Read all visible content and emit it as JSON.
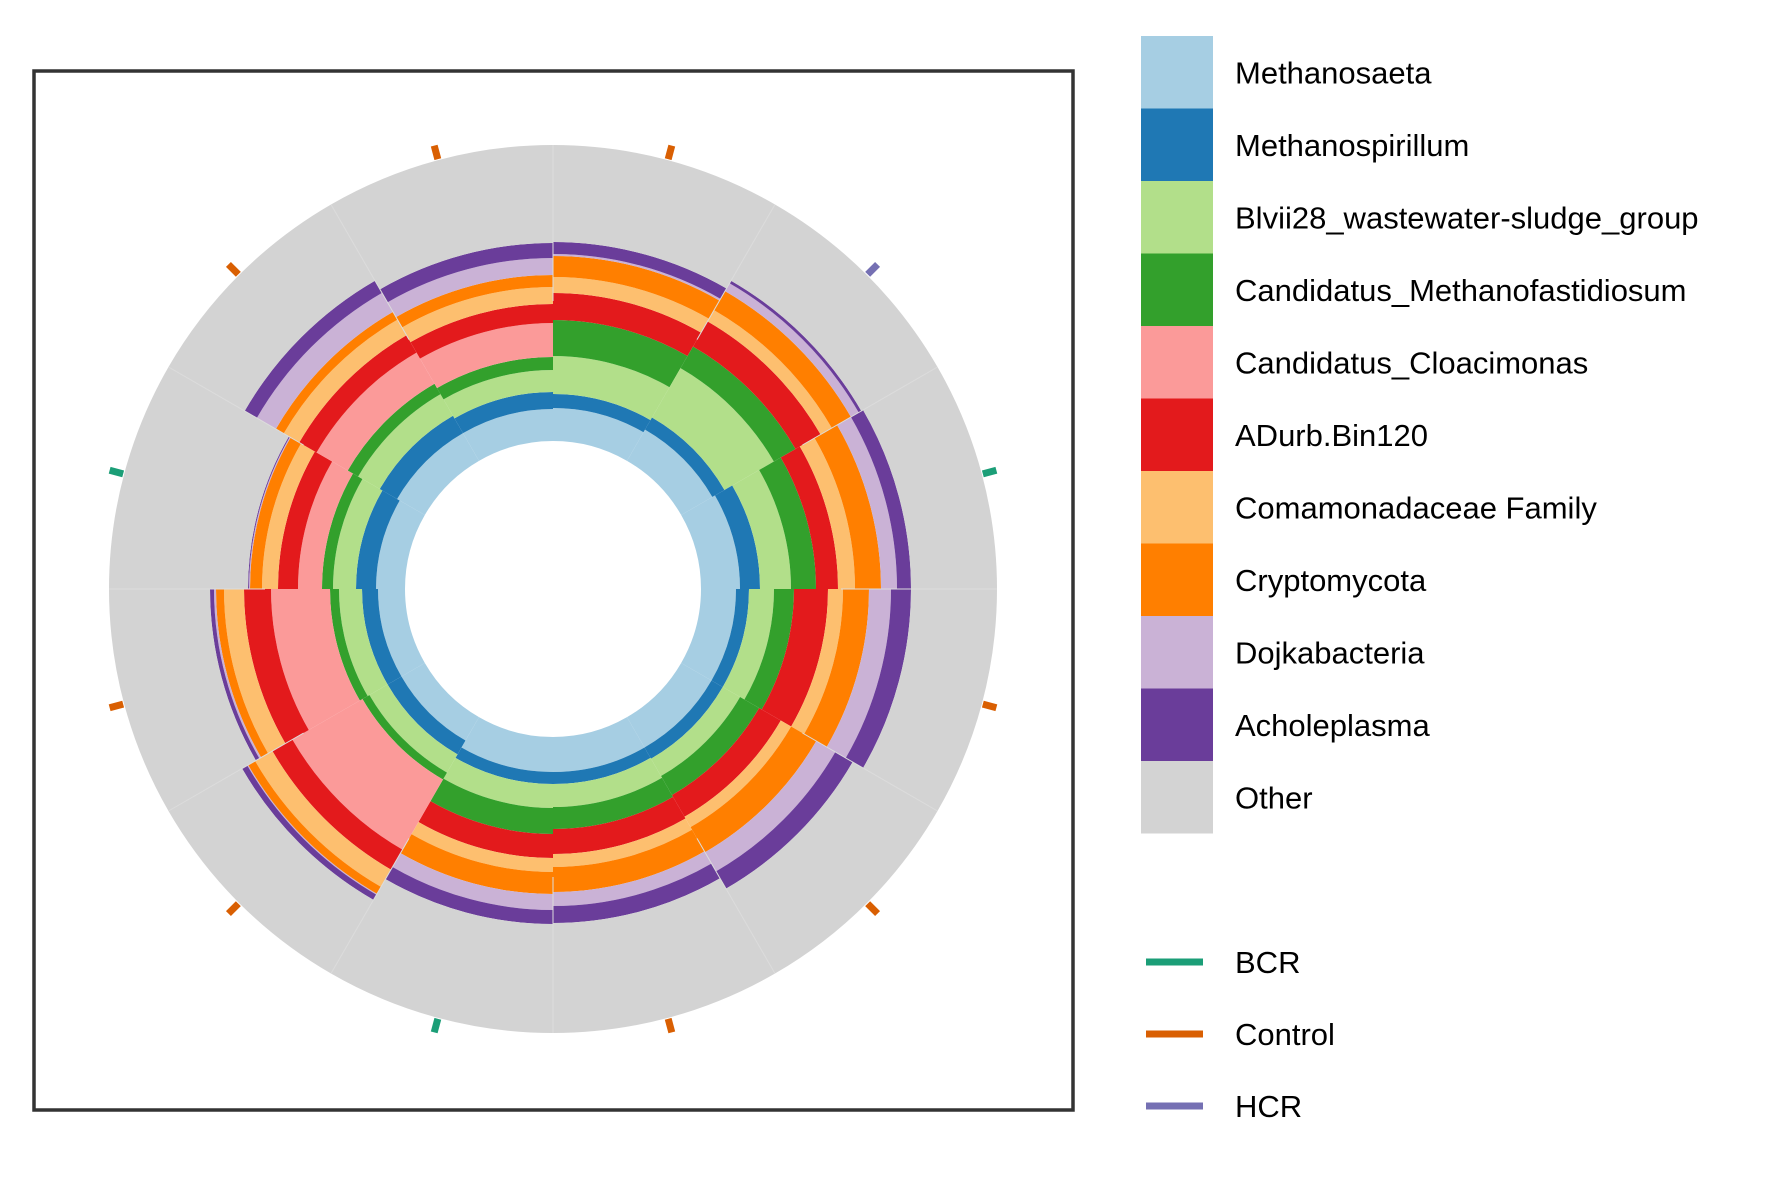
{
  "chart_data": {
    "type": "circular-stacked-bar",
    "sectors": 12,
    "taxa": [
      {
        "name": "Methanosaeta",
        "color": "#A6CEE3"
      },
      {
        "name": "Methanospirillum",
        "color": "#1F78B4"
      },
      {
        "name": "Blvii28_wastewater-sludge_group",
        "color": "#B2DF8A"
      },
      {
        "name": "Candidatus_Methanofastidiosum",
        "color": "#33A02C"
      },
      {
        "name": "Candidatus_Cloacimonas",
        "color": "#FB9A99"
      },
      {
        "name": "ADurb.Bin120",
        "color": "#E31A1C"
      },
      {
        "name": "Comamonadaceae Family",
        "color": "#FDBF6F"
      },
      {
        "name": "Cryptomycota",
        "color": "#FF7F00"
      },
      {
        "name": "Dojkabacteria",
        "color": "#CAB2D6"
      },
      {
        "name": "Acholeplasma",
        "color": "#6A3D9A"
      },
      {
        "name": "Other",
        "color": "#D3D3D3"
      }
    ],
    "groups": [
      {
        "name": "BCR",
        "color": "#1B9E77"
      },
      {
        "name": "Control",
        "color": "#D95F02"
      },
      {
        "name": "HCR",
        "color": "#7570B3"
      }
    ],
    "samples": [
      {
        "group": "Control",
        "values": [
          0.033,
          0.014,
          0.038,
          0.036,
          0.0,
          0.027,
          0.016,
          0.021,
          0.002,
          0.012
        ]
      },
      {
        "group": "HCR",
        "values": [
          0.036,
          0.014,
          0.057,
          0.025,
          0.0,
          0.029,
          0.013,
          0.022,
          0.009,
          0.003
        ]
      },
      {
        "group": "BCR",
        "values": [
          0.039,
          0.02,
          0.031,
          0.025,
          0.0,
          0.022,
          0.017,
          0.026,
          0.016,
          0.014
        ]
      },
      {
        "group": "Control",
        "values": [
          0.035,
          0.013,
          0.025,
          0.02,
          0.0,
          0.034,
          0.015,
          0.026,
          0.022,
          0.02
        ]
      },
      {
        "group": "Control",
        "values": [
          0.035,
          0.013,
          0.02,
          0.022,
          0.0,
          0.025,
          0.012,
          0.029,
          0.022,
          0.02
        ]
      },
      {
        "group": "Control",
        "values": [
          0.035,
          0.012,
          0.023,
          0.022,
          0.0,
          0.025,
          0.013,
          0.025,
          0.014,
          0.017
        ]
      },
      {
        "group": "BCR",
        "values": [
          0.035,
          0.012,
          0.024,
          0.026,
          0.0,
          0.024,
          0.014,
          0.022,
          0.016,
          0.014
        ]
      },
      {
        "group": "Control",
        "values": [
          0.027,
          0.016,
          0.021,
          0.008,
          0.081,
          0.023,
          0.02,
          0.008,
          0.001,
          0.006
        ]
      },
      {
        "group": "Control",
        "values": [
          0.027,
          0.016,
          0.023,
          0.009,
          0.059,
          0.027,
          0.02,
          0.008,
          0.002,
          0.004
        ]
      },
      {
        "group": "BCR",
        "values": [
          0.029,
          0.02,
          0.023,
          0.011,
          0.024,
          0.02,
          0.016,
          0.012,
          0.001,
          0.001
        ]
      },
      {
        "group": "Control",
        "values": [
          0.032,
          0.02,
          0.025,
          0.012,
          0.036,
          0.02,
          0.018,
          0.009,
          0.022,
          0.014
        ]
      },
      {
        "group": "Control",
        "values": [
          0.032,
          0.017,
          0.022,
          0.013,
          0.034,
          0.019,
          0.017,
          0.012,
          0.017,
          0.015
        ]
      }
    ]
  }
}
